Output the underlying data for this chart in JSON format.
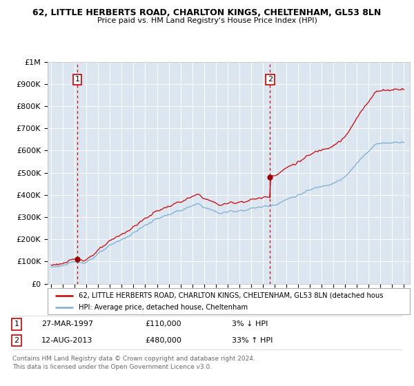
{
  "title1": "62, LITTLE HERBERTS ROAD, CHARLTON KINGS, CHELTENHAM, GL53 8LN",
  "title2": "Price paid vs. HM Land Registry's House Price Index (HPI)",
  "bg_color": "#dce6f1",
  "plot_bg_color": "#dce6f1",
  "hpi_color": "#7aadd4",
  "price_color": "#cc0000",
  "marker_color": "#990000",
  "dashed_color": "#cc0000",
  "ylim": [
    0,
    1000000
  ],
  "yticks": [
    0,
    100000,
    200000,
    300000,
    400000,
    500000,
    600000,
    700000,
    800000,
    900000,
    1000000
  ],
  "ytick_labels": [
    "£0",
    "£100K",
    "£200K",
    "£300K",
    "£400K",
    "£500K",
    "£600K",
    "£700K",
    "£800K",
    "£900K",
    "£1M"
  ],
  "xlim_start": 1994.7,
  "xlim_end": 2025.5,
  "sale1_year": 1997.23,
  "sale1_price": 110000,
  "sale2_year": 2013.62,
  "sale2_price": 480000,
  "legend_line1": "62, LITTLE HERBERTS ROAD, CHARLTON KINGS, CHELTENHAM, GL53 8LN (detached hous",
  "legend_line2": "HPI: Average price, detached house, Cheltenham",
  "footer1": "Contains HM Land Registry data © Crown copyright and database right 2024.",
  "footer2": "This data is licensed under the Open Government Licence v3.0.",
  "table_data": [
    {
      "num": "1",
      "date": "27-MAR-1997",
      "price": "£110,000",
      "hpi": "3% ↓ HPI"
    },
    {
      "num": "2",
      "date": "12-AUG-2013",
      "price": "£480,000",
      "hpi": "33% ↑ HPI"
    }
  ]
}
